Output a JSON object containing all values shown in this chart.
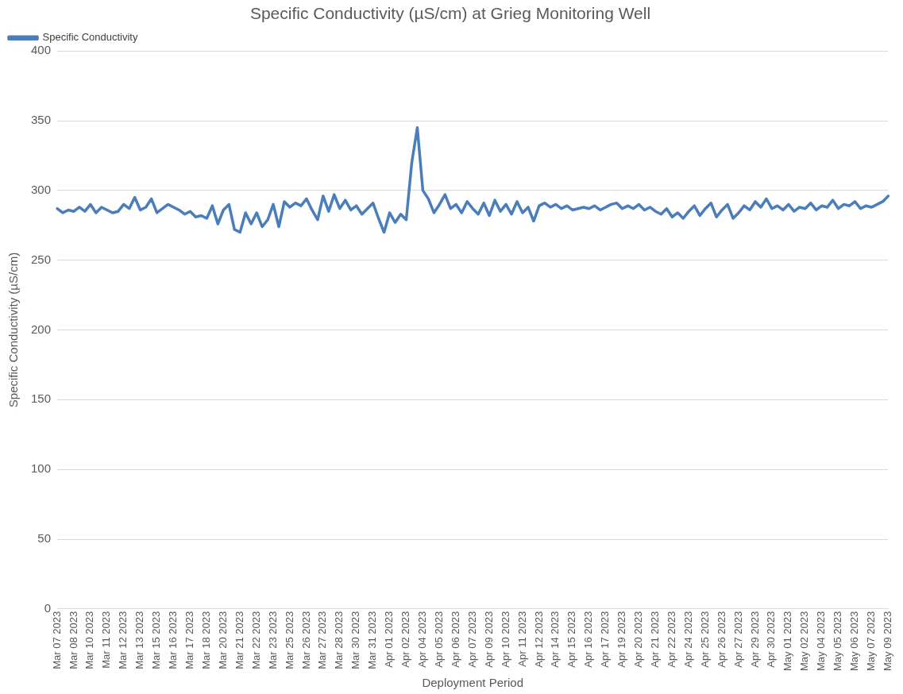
{
  "chart_data": {
    "type": "line",
    "title": "Specific Conductivity (µS/cm) at Grieg Monitoring Well",
    "xlabel": "Deployment Period",
    "ylabel": "Specific Conductivity (µS/cm)",
    "categories": [
      "Mar 07 2023",
      null,
      null,
      "Mar 08 2023",
      null,
      null,
      "Mar 10 2023",
      null,
      null,
      "Mar 11 2023",
      null,
      null,
      "Mar 12 2023",
      null,
      null,
      "Mar 13 2023",
      null,
      null,
      "Mar 15 2023",
      null,
      null,
      "Mar 16 2023",
      null,
      null,
      "Mar 17 2023",
      null,
      null,
      "Mar 18 2023",
      null,
      null,
      "Mar 20 2023",
      null,
      null,
      "Mar 21 2023",
      null,
      null,
      "Mar 22 2023",
      null,
      null,
      "Mar 23 2023",
      null,
      null,
      "Mar 25 2023",
      null,
      null,
      "Mar 26 2023",
      null,
      null,
      "Mar 27 2023",
      null,
      null,
      "Mar 28 2023",
      null,
      null,
      "Mar 30 2023",
      null,
      null,
      "Mar 31 2023",
      null,
      null,
      "Apr 01 2023",
      null,
      null,
      "Apr 02 2023",
      null,
      null,
      "Apr 04 2023",
      null,
      null,
      "Apr 05 2023",
      null,
      null,
      "Apr 06 2023",
      null,
      null,
      "Apr 07 2023",
      null,
      null,
      "Apr 09 2023",
      null,
      null,
      "Apr 10 2023",
      null,
      null,
      "Apr 11 2023",
      null,
      null,
      "Apr 12 2023",
      null,
      null,
      "Apr 14 2023",
      null,
      null,
      "Apr 15 2023",
      null,
      null,
      "Apr 16 2023",
      null,
      null,
      "Apr 17 2023",
      null,
      null,
      "Apr 19 2023",
      null,
      null,
      "Apr 20 2023",
      null,
      null,
      "Apr 21 2023",
      null,
      null,
      "Apr 22 2023",
      null,
      null,
      "Apr 24 2023",
      null,
      null,
      "Apr 25 2023",
      null,
      null,
      "Apr 26 2023",
      null,
      null,
      "Apr 27 2023",
      null,
      null,
      "Apr 29 2023",
      null,
      null,
      "Apr 30 2023",
      null,
      null,
      "May 01 2023",
      null,
      null,
      "May 02 2023",
      null,
      null,
      "May 04 2023",
      null,
      null,
      "May 05 2023",
      null,
      null,
      "May 06 2023",
      null,
      null,
      "May 07 2023",
      null,
      null,
      "May 09 2023"
    ],
    "series": [
      {
        "name": "Specific Conductivity",
        "color": "#4a7ebb",
        "values": [
          287,
          284,
          286,
          285,
          288,
          285,
          290,
          284,
          288,
          286,
          284,
          285,
          290,
          287,
          295,
          286,
          288,
          294,
          284,
          287,
          290,
          288,
          286,
          283,
          285,
          281,
          282,
          280,
          289,
          276,
          286,
          290,
          272,
          270,
          284,
          276,
          284,
          274,
          279,
          290,
          274,
          292,
          288,
          291,
          289,
          294,
          286,
          279,
          296,
          285,
          297,
          287,
          293,
          286,
          289,
          283,
          287,
          291,
          280,
          270,
          284,
          277,
          283,
          279,
          320,
          345,
          300,
          294,
          284,
          290,
          297,
          287,
          290,
          284,
          292,
          287,
          283,
          291,
          282,
          293,
          285,
          290,
          283,
          292,
          284,
          288,
          278,
          289,
          291,
          288,
          290,
          287,
          289,
          286,
          287,
          288,
          287,
          289,
          286,
          288,
          290,
          291,
          287,
          289,
          287,
          290,
          286,
          288,
          285,
          283,
          287,
          281,
          284,
          280,
          285,
          289,
          282,
          287,
          291,
          281,
          286,
          290,
          280,
          284,
          289,
          286,
          292,
          288,
          294,
          287,
          289,
          286,
          290,
          285,
          288,
          287,
          291,
          286,
          289,
          288,
          293,
          287,
          290,
          289,
          292,
          287,
          289,
          288,
          290,
          292,
          296
        ]
      }
    ],
    "ylim": [
      0,
      400
    ],
    "yticks": [
      0,
      50,
      100,
      150,
      200,
      250,
      300,
      350,
      400
    ],
    "grid": "y",
    "legend": "top left",
    "marker": "none",
    "line_style": "solid"
  }
}
